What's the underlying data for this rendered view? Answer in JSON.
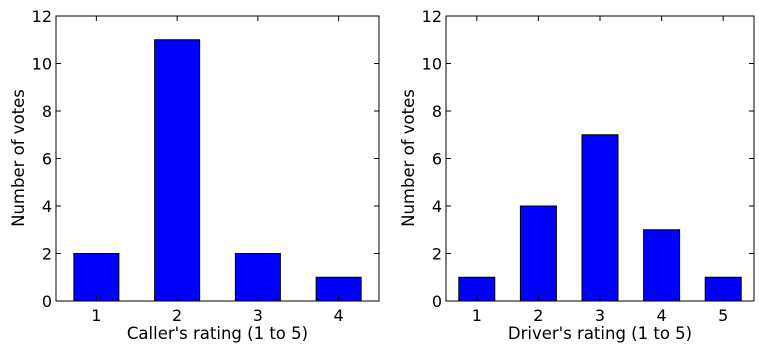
{
  "colors": {
    "bar_fill": "#0000ff",
    "bar_stroke": "#000000",
    "axes": "#000000",
    "background": "#ffffff"
  },
  "chart_data": [
    {
      "type": "bar",
      "categories": [
        "1",
        "2",
        "3",
        "4"
      ],
      "values": [
        2,
        11,
        2,
        1
      ],
      "title": "",
      "xlabel": "Caller's rating (1 to 5)",
      "ylabel": "Number of votes",
      "ylim": [
        0,
        12
      ],
      "yticks": [
        "0",
        "2",
        "4",
        "6",
        "8",
        "10",
        "12"
      ],
      "grid": false,
      "legend": "none"
    },
    {
      "type": "bar",
      "categories": [
        "1",
        "2",
        "3",
        "4",
        "5"
      ],
      "values": [
        1,
        4,
        7,
        3,
        1
      ],
      "title": "",
      "xlabel": "Driver's rating (1 to 5)",
      "ylabel": "Number of votes",
      "ylim": [
        0,
        12
      ],
      "yticks": [
        "0",
        "2",
        "4",
        "6",
        "8",
        "10",
        "12"
      ],
      "grid": false,
      "legend": "none"
    }
  ]
}
